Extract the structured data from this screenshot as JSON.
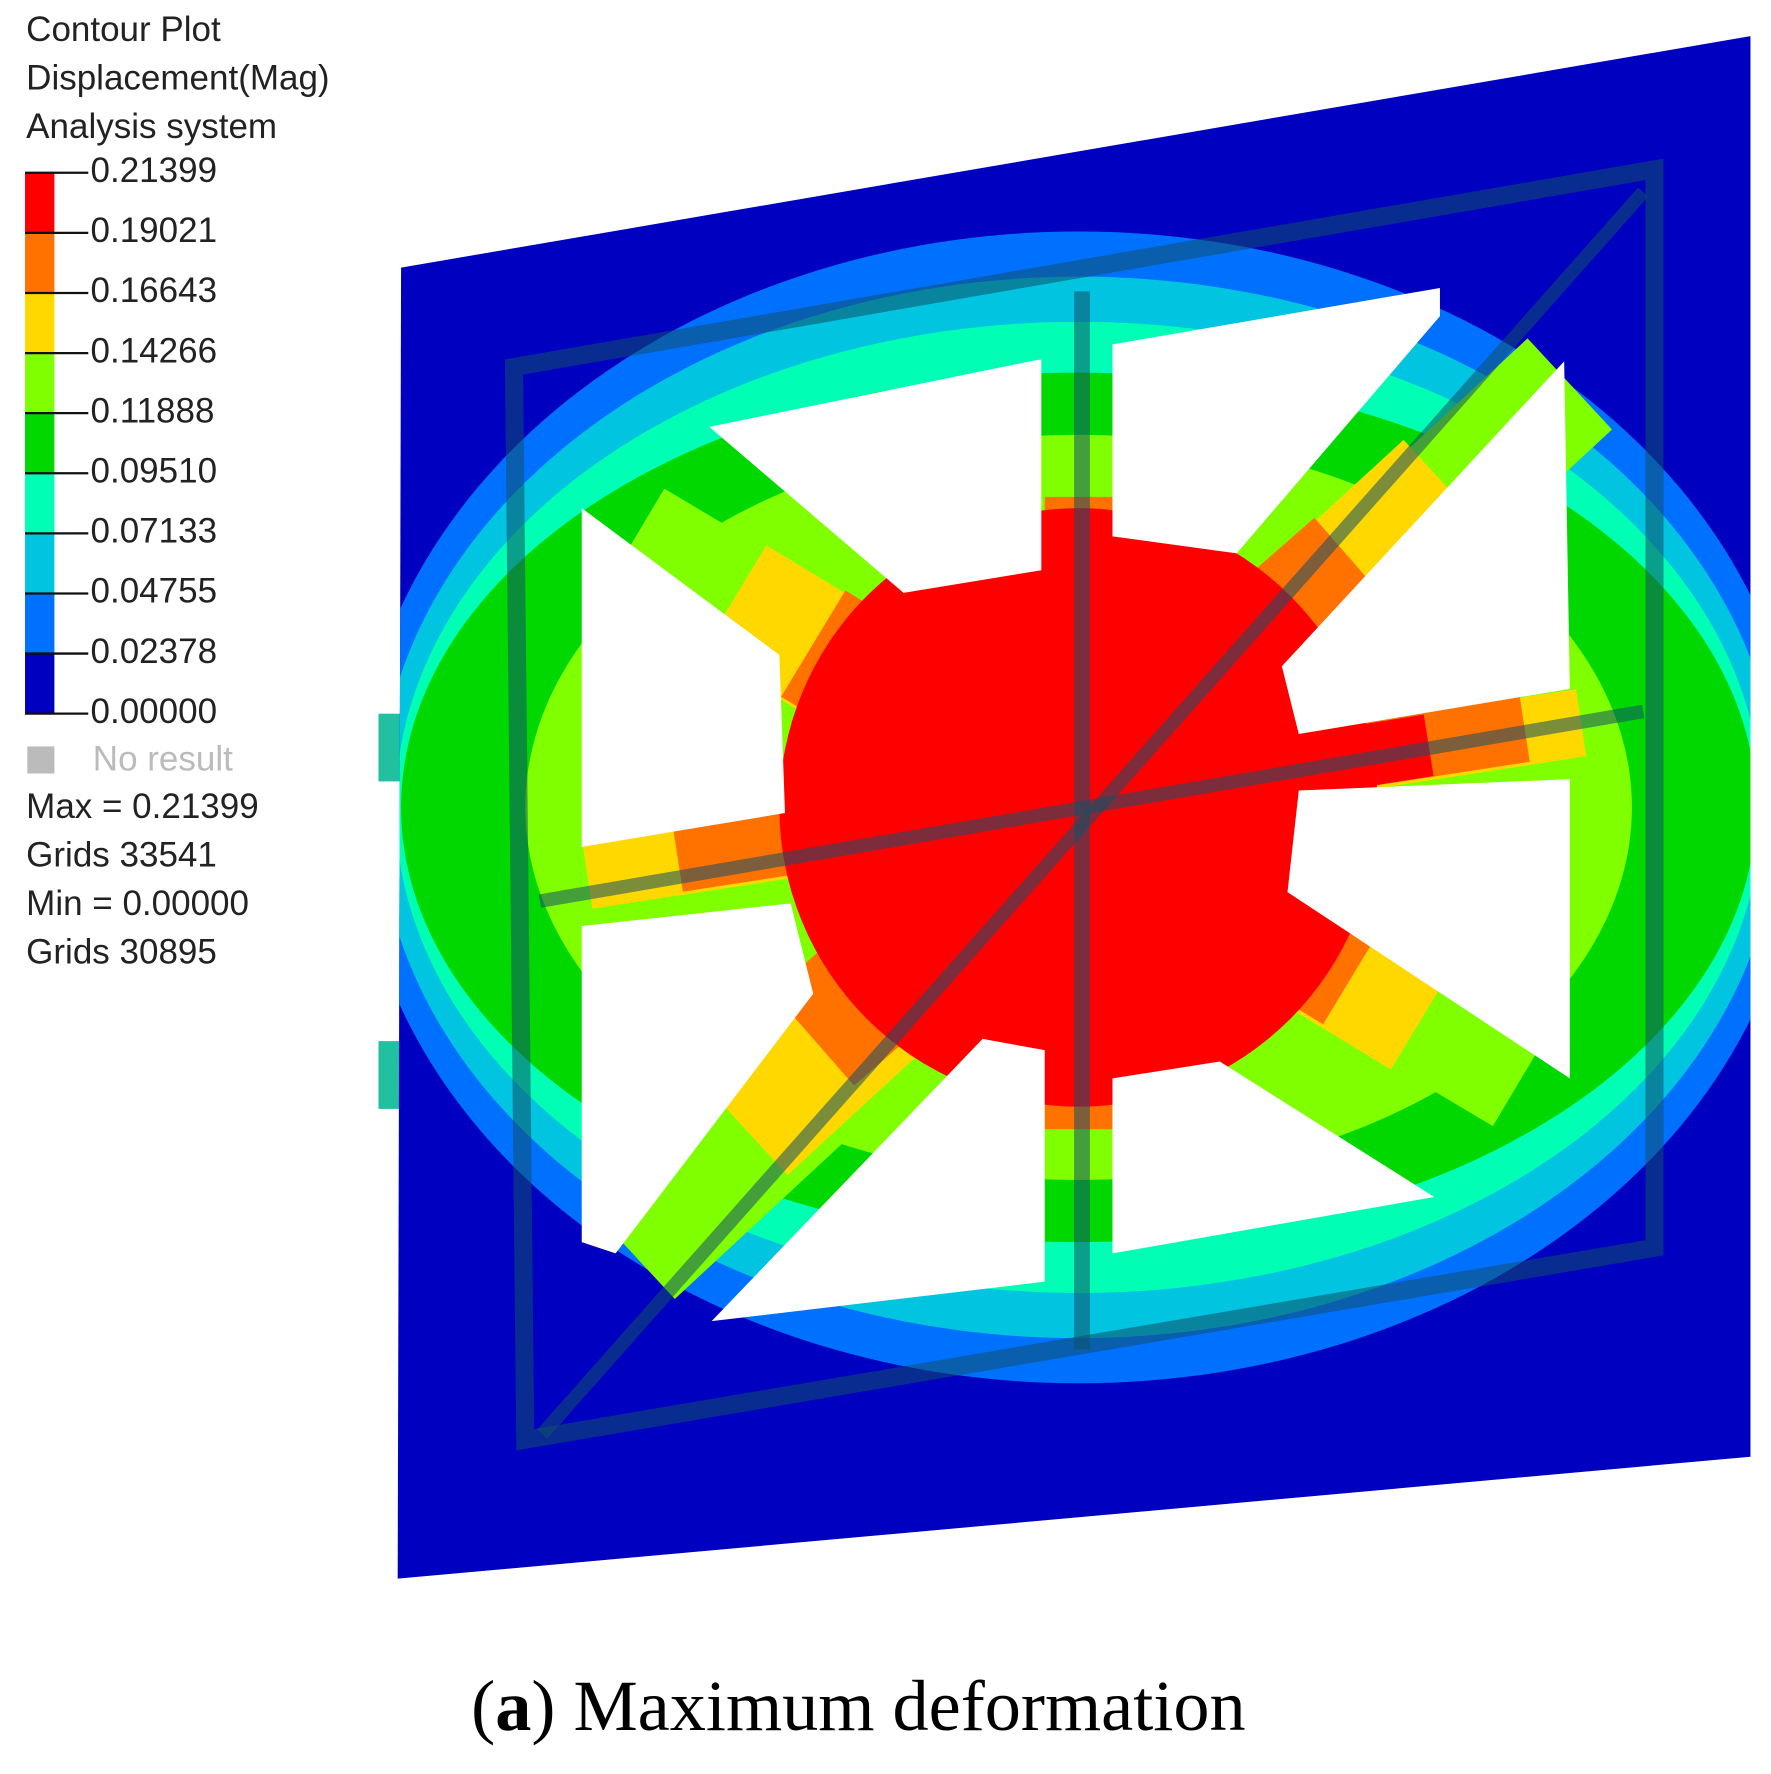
{
  "legend": {
    "title_lines": [
      "Contour Plot",
      "Displacement(Mag)",
      "Analysis system"
    ],
    "levels": [
      "0.21399",
      "0.19021",
      "0.16643",
      "0.14266",
      "0.11888",
      "0.09510",
      "0.07133",
      "0.04755",
      "0.02378",
      "0.00000"
    ],
    "band_colors": [
      "#ff0000",
      "#ff7200",
      "#ffd800",
      "#80ff00",
      "#00d800",
      "#00ffb4",
      "#00c4e0",
      "#0070ff",
      "#0000c0"
    ],
    "no_result": "No result",
    "stats": [
      "Max = 0.21399",
      "Grids 33541",
      "Min = 0.00000",
      "Grids 30895"
    ]
  },
  "caption": {
    "open": "(",
    "label": "a",
    "text": ") Maximum deformation"
  }
}
